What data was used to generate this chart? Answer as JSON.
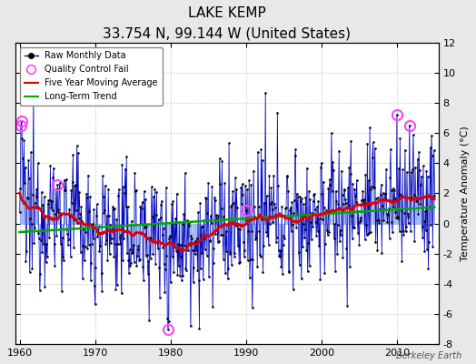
{
  "title": "LAKE KEMP",
  "subtitle": "33.754 N, 99.144 W (United States)",
  "ylabel": "Temperature Anomaly (°C)",
  "attribution": "Berkeley Earth",
  "xlim": [
    1959.5,
    2015.5
  ],
  "ylim": [
    -8,
    12
  ],
  "yticks": [
    -8,
    -6,
    -4,
    -2,
    0,
    2,
    4,
    6,
    8,
    10,
    12
  ],
  "xticks": [
    1960,
    1970,
    1980,
    1990,
    2000,
    2010
  ],
  "background_color": "#e8e8e8",
  "plot_bg_color": "#ffffff",
  "bar_color": "#7799ee",
  "line_color": "#0000bb",
  "ma_color": "#dd0000",
  "trend_color": "#00aa00",
  "qc_color": "#ff44ff",
  "grid_color": "#cccccc",
  "seed": 12345,
  "figwidth": 5.24,
  "figheight": 4.0,
  "dpi": 100
}
